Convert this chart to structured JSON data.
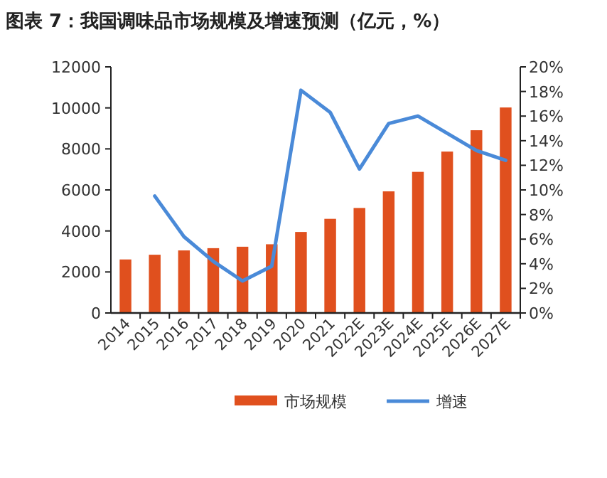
{
  "chart_data": {
    "type": "bar",
    "title": "图表 7：我国调味品市场规模及增速预测（亿元，%）",
    "categories": [
      "2014",
      "2015",
      "2016",
      "2017",
      "2018",
      "2019",
      "2020",
      "2021",
      "2022E",
      "2023E",
      "2024E",
      "2025E",
      "2026E",
      "2027E"
    ],
    "series": [
      {
        "name": "市场规模",
        "color": "#e0501e",
        "values": [
          2610,
          2840,
          3050,
          3160,
          3230,
          3350,
          3950,
          4590,
          5120,
          5930,
          6880,
          7870,
          8910,
          10020
        ]
      },
      {
        "name": "增速",
        "type": "line",
        "axis": "y2",
        "color": "#4a8ad8",
        "values": [
          null,
          9.5,
          6.2,
          4.2,
          2.6,
          3.8,
          18.1,
          16.3,
          11.7,
          15.4,
          16.0,
          14.6,
          13.2,
          12.4
        ]
      }
    ],
    "ylim": [
      0,
      12000
    ],
    "yticks": [
      0,
      2000,
      4000,
      6000,
      8000,
      10000,
      12000
    ],
    "y2lim": [
      0,
      20
    ],
    "y2ticks": [
      {
        "value": 0,
        "label": "0%"
      },
      {
        "value": 2,
        "label": "2%"
      },
      {
        "value": 4,
        "label": "4%"
      },
      {
        "value": 6,
        "label": "6%"
      },
      {
        "value": 8,
        "label": "8%"
      },
      {
        "value": 10,
        "label": "10%"
      },
      {
        "value": 12,
        "label": "12%"
      },
      {
        "value": 14,
        "label": "14%"
      },
      {
        "value": 16,
        "label": "16%"
      },
      {
        "value": 18,
        "label": "18%"
      },
      {
        "value": 20,
        "label": "20%"
      }
    ],
    "legend": "bottom",
    "grid": false
  }
}
